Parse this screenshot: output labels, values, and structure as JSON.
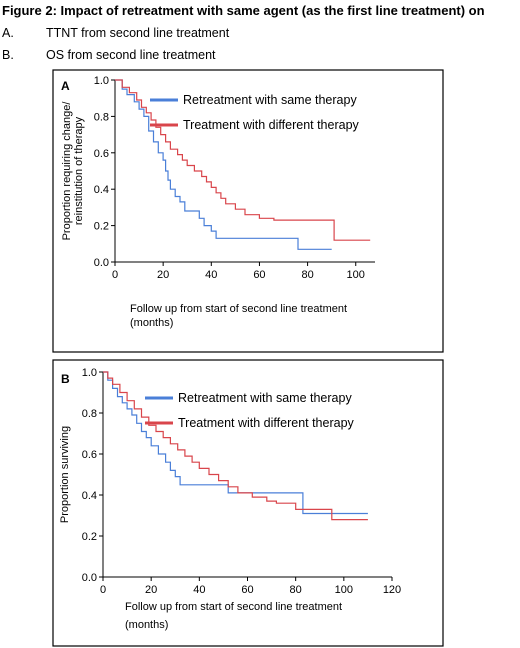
{
  "figure": {
    "title": "Figure 2: Impact of retreatment with same agent (as the first line treatment) on",
    "items": [
      {
        "label": "A.",
        "text": "TTNT from second line treatment"
      },
      {
        "label": "B.",
        "text": "OS from second line treatment"
      }
    ]
  },
  "colors": {
    "same": "#4a7fd8",
    "different": "#d9454b"
  },
  "chart_data": [
    {
      "panel": "A",
      "type": "line",
      "step": true,
      "ylabel": [
        "Proportion requiring change/",
        "reinstitution of therapy"
      ],
      "xlabel": [
        "Follow up from start of second line treatment",
        "(months)"
      ],
      "xlim": [
        0,
        108
      ],
      "ylim": [
        0,
        1.0
      ],
      "xticks": [
        0,
        20,
        40,
        60,
        80,
        100
      ],
      "yticks": [
        0.0,
        0.2,
        0.4,
        0.6,
        0.8,
        1.0
      ],
      "legend_position": "top-right",
      "series": [
        {
          "name": "Retreatment with same therapy",
          "color_key": "same",
          "points": [
            [
              0,
              1.0
            ],
            [
              3,
              0.95
            ],
            [
              5,
              0.92
            ],
            [
              8,
              0.88
            ],
            [
              10,
              0.84
            ],
            [
              12,
              0.8
            ],
            [
              14,
              0.72
            ],
            [
              16,
              0.66
            ],
            [
              18,
              0.6
            ],
            [
              20,
              0.56
            ],
            [
              21,
              0.5
            ],
            [
              22,
              0.45
            ],
            [
              23,
              0.4
            ],
            [
              25,
              0.36
            ],
            [
              27,
              0.33
            ],
            [
              29,
              0.28
            ],
            [
              35,
              0.24
            ],
            [
              37,
              0.2
            ],
            [
              40,
              0.17
            ],
            [
              42,
              0.13
            ],
            [
              75,
              0.13
            ],
            [
              76,
              0.07
            ],
            [
              90,
              0.07
            ]
          ]
        },
        {
          "name": "Treatment with different therapy",
          "color_key": "different",
          "points": [
            [
              0,
              1.0
            ],
            [
              3,
              0.96
            ],
            [
              6,
              0.93
            ],
            [
              9,
              0.89
            ],
            [
              11,
              0.85
            ],
            [
              13,
              0.82
            ],
            [
              15,
              0.78
            ],
            [
              17,
              0.74
            ],
            [
              19,
              0.7
            ],
            [
              21,
              0.66
            ],
            [
              23,
              0.62
            ],
            [
              26,
              0.59
            ],
            [
              28,
              0.56
            ],
            [
              30,
              0.53
            ],
            [
              33,
              0.5
            ],
            [
              36,
              0.47
            ],
            [
              38,
              0.44
            ],
            [
              40,
              0.41
            ],
            [
              42,
              0.38
            ],
            [
              44,
              0.35
            ],
            [
              46,
              0.32
            ],
            [
              50,
              0.29
            ],
            [
              54,
              0.26
            ],
            [
              60,
              0.24
            ],
            [
              64,
              0.24
            ],
            [
              66,
              0.23
            ],
            [
              72,
              0.23
            ],
            [
              90,
              0.23
            ],
            [
              91,
              0.12
            ],
            [
              106,
              0.12
            ]
          ]
        }
      ]
    },
    {
      "panel": "B",
      "type": "line",
      "step": true,
      "ylabel": [
        "Proportion surviving"
      ],
      "xlabel": [
        "Follow up from start of second line treatment",
        "(months)"
      ],
      "xlim": [
        0,
        120
      ],
      "ylim": [
        0,
        1.0
      ],
      "xticks": [
        0,
        20,
        40,
        60,
        80,
        100,
        120
      ],
      "yticks": [
        0.0,
        0.2,
        0.4,
        0.6,
        0.8,
        1.0
      ],
      "legend_position": "top-right",
      "series": [
        {
          "name": "Retreatment with same therapy",
          "color_key": "same",
          "points": [
            [
              0,
              1.0
            ],
            [
              2,
              0.96
            ],
            [
              4,
              0.92
            ],
            [
              6,
              0.88
            ],
            [
              8,
              0.85
            ],
            [
              10,
              0.82
            ],
            [
              12,
              0.79
            ],
            [
              14,
              0.75
            ],
            [
              16,
              0.71
            ],
            [
              18,
              0.68
            ],
            [
              20,
              0.64
            ],
            [
              23,
              0.6
            ],
            [
              26,
              0.56
            ],
            [
              28,
              0.52
            ],
            [
              30,
              0.49
            ],
            [
              32,
              0.45
            ],
            [
              50,
              0.45
            ],
            [
              52,
              0.41
            ],
            [
              66,
              0.41
            ],
            [
              68,
              0.41
            ],
            [
              82,
              0.41
            ],
            [
              83,
              0.31
            ],
            [
              110,
              0.31
            ]
          ]
        },
        {
          "name": "Treatment with different therapy",
          "color_key": "different",
          "points": [
            [
              0,
              1.0
            ],
            [
              2,
              0.97
            ],
            [
              4,
              0.94
            ],
            [
              7,
              0.9
            ],
            [
              10,
              0.86
            ],
            [
              13,
              0.82
            ],
            [
              16,
              0.78
            ],
            [
              19,
              0.74
            ],
            [
              22,
              0.71
            ],
            [
              25,
              0.68
            ],
            [
              28,
              0.65
            ],
            [
              31,
              0.62
            ],
            [
              34,
              0.59
            ],
            [
              37,
              0.56
            ],
            [
              40,
              0.53
            ],
            [
              44,
              0.5
            ],
            [
              48,
              0.47
            ],
            [
              52,
              0.44
            ],
            [
              56,
              0.41
            ],
            [
              62,
              0.39
            ],
            [
              68,
              0.37
            ],
            [
              72,
              0.36
            ],
            [
              80,
              0.33
            ],
            [
              94,
              0.33
            ],
            [
              95,
              0.28
            ],
            [
              110,
              0.28
            ]
          ]
        }
      ]
    }
  ]
}
